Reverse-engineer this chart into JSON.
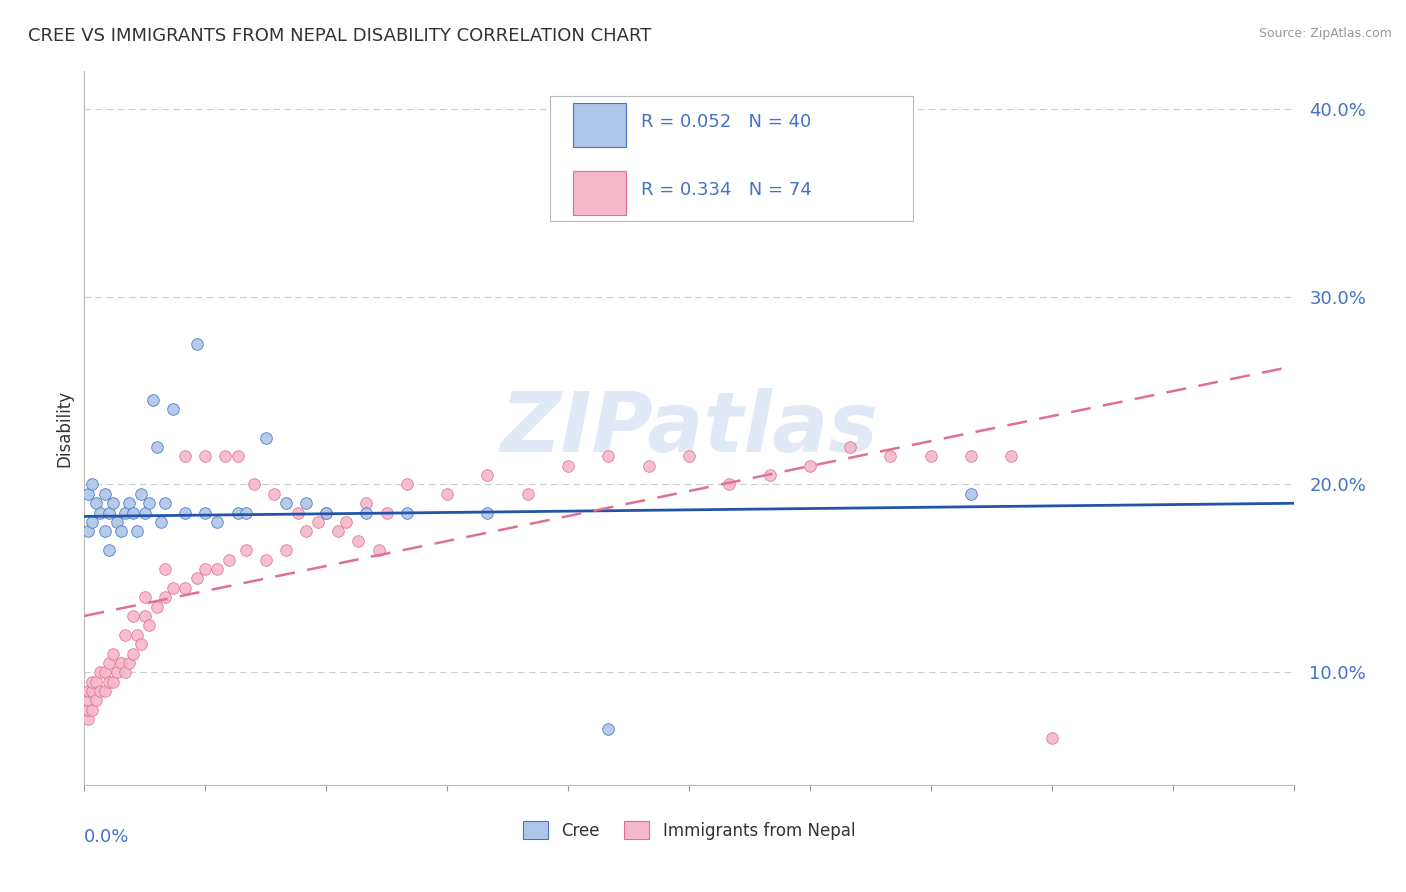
{
  "title": "CREE VS IMMIGRANTS FROM NEPAL DISABILITY CORRELATION CHART",
  "source": "Source: ZipAtlas.com",
  "ylabel": "Disability",
  "xmin": 0.0,
  "xmax": 0.3,
  "ymin": 0.04,
  "ymax": 0.42,
  "yticks": [
    0.1,
    0.2,
    0.3,
    0.4
  ],
  "ytick_labels": [
    "10.0%",
    "20.0%",
    "30.0%",
    "40.0%"
  ],
  "cree_color": "#aec6e8",
  "nepal_color": "#f5b8cb",
  "cree_edge_color": "#4472c4",
  "nepal_edge_color": "#e07090",
  "cree_line_color": "#2255aa",
  "nepal_line_color": "#e07090",
  "watermark_text": "ZIPatlas",
  "cree_trend_start_y": 0.183,
  "cree_trend_end_y": 0.19,
  "nepal_trend_start_y": 0.13,
  "nepal_trend_end_y": 0.263,
  "cree_scatter_x": [
    0.001,
    0.001,
    0.002,
    0.002,
    0.003,
    0.004,
    0.005,
    0.005,
    0.006,
    0.006,
    0.007,
    0.008,
    0.009,
    0.01,
    0.011,
    0.012,
    0.013,
    0.014,
    0.015,
    0.016,
    0.017,
    0.018,
    0.019,
    0.02,
    0.022,
    0.025,
    0.028,
    0.03,
    0.033,
    0.038,
    0.04,
    0.045,
    0.05,
    0.055,
    0.06,
    0.07,
    0.08,
    0.22,
    0.1,
    0.13
  ],
  "cree_scatter_y": [
    0.175,
    0.195,
    0.18,
    0.2,
    0.19,
    0.185,
    0.195,
    0.175,
    0.185,
    0.165,
    0.19,
    0.18,
    0.175,
    0.185,
    0.19,
    0.185,
    0.175,
    0.195,
    0.185,
    0.19,
    0.245,
    0.22,
    0.18,
    0.19,
    0.24,
    0.185,
    0.275,
    0.185,
    0.18,
    0.185,
    0.185,
    0.225,
    0.19,
    0.19,
    0.185,
    0.185,
    0.185,
    0.195,
    0.185,
    0.07
  ],
  "nepal_scatter_x": [
    0.001,
    0.001,
    0.001,
    0.001,
    0.002,
    0.002,
    0.002,
    0.003,
    0.003,
    0.004,
    0.004,
    0.005,
    0.005,
    0.006,
    0.006,
    0.007,
    0.007,
    0.008,
    0.009,
    0.01,
    0.011,
    0.012,
    0.013,
    0.014,
    0.015,
    0.016,
    0.018,
    0.02,
    0.022,
    0.025,
    0.028,
    0.03,
    0.033,
    0.036,
    0.04,
    0.045,
    0.05,
    0.055,
    0.06,
    0.065,
    0.07,
    0.075,
    0.08,
    0.09,
    0.1,
    0.11,
    0.12,
    0.13,
    0.14,
    0.15,
    0.16,
    0.17,
    0.18,
    0.19,
    0.2,
    0.21,
    0.22,
    0.23,
    0.025,
    0.03,
    0.035,
    0.038,
    0.042,
    0.047,
    0.053,
    0.058,
    0.063,
    0.068,
    0.073,
    0.02,
    0.015,
    0.012,
    0.01,
    0.24
  ],
  "nepal_scatter_y": [
    0.075,
    0.08,
    0.085,
    0.09,
    0.08,
    0.09,
    0.095,
    0.085,
    0.095,
    0.09,
    0.1,
    0.09,
    0.1,
    0.095,
    0.105,
    0.095,
    0.11,
    0.1,
    0.105,
    0.1,
    0.105,
    0.11,
    0.12,
    0.115,
    0.13,
    0.125,
    0.135,
    0.14,
    0.145,
    0.145,
    0.15,
    0.155,
    0.155,
    0.16,
    0.165,
    0.16,
    0.165,
    0.175,
    0.185,
    0.18,
    0.19,
    0.185,
    0.2,
    0.195,
    0.205,
    0.195,
    0.21,
    0.215,
    0.21,
    0.215,
    0.2,
    0.205,
    0.21,
    0.22,
    0.215,
    0.215,
    0.215,
    0.215,
    0.215,
    0.215,
    0.215,
    0.215,
    0.2,
    0.195,
    0.185,
    0.18,
    0.175,
    0.17,
    0.165,
    0.155,
    0.14,
    0.13,
    0.12,
    0.065
  ]
}
